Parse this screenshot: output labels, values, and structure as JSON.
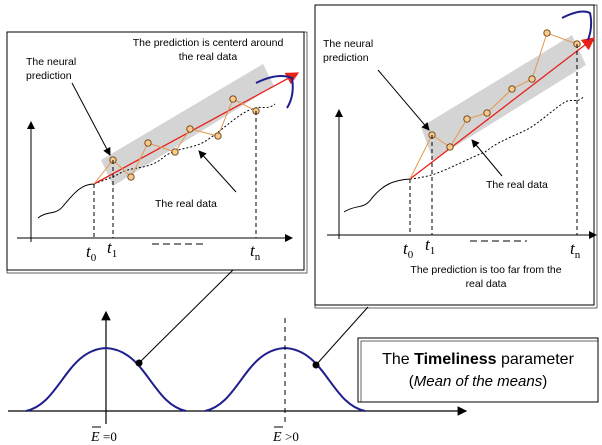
{
  "left_panel": {
    "title_line1": "The prediction is centerd around",
    "title_line2": "the real data",
    "neural_line1": "The neural",
    "neural_line2": "prediction",
    "real_data": "The real data",
    "t0_base": "t",
    "t0_sub": "0",
    "t1_base": "t",
    "t1_sub": "1",
    "tn_base": "t",
    "tn_sub": "n"
  },
  "right_panel": {
    "neural_line1": "The neural",
    "neural_line2": "prediction",
    "real_data": "The real data",
    "caption_line1": "The prediction is too far from the",
    "caption_line2": "real data",
    "t0_base": "t",
    "t0_sub": "0",
    "t1_base": "t",
    "t1_sub": "1",
    "tn_base": "t",
    "tn_sub": "n"
  },
  "timeliness": {
    "line1_pre": "The ",
    "line1_bold": "Timeliness",
    "line1_post": " parameter",
    "line2_open": "(",
    "line2_italic": "Mean of the means",
    "line2_close": ")"
  },
  "bottom_axis": {
    "left_label_symbol": "E",
    "left_label_rel": "=0",
    "right_label_symbol": "E",
    "right_label_rel": ">0"
  },
  "colors": {
    "curve": "#1f1f8f",
    "prediction_arrow": "#e8201a",
    "point_fill": "#f7c98a",
    "point_link": "#e09a50",
    "band": "#d4d4d4"
  }
}
